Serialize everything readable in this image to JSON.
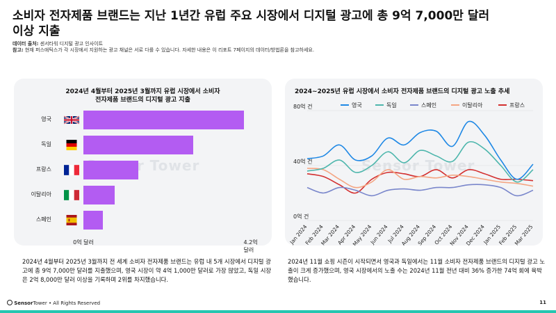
{
  "header": {
    "title": "소비자 전자제품 브랜드는 지난 1년간 유럽 주요 시장에서 디지털 광고에 총 9억 7,000만 달러 이상 지출",
    "source_label": "데이터 출처:",
    "source_value": "센서타워 디지털 광고 인사이트",
    "note_label": "참고:",
    "note_value": "현재 퍼스애틱스가 각 시장에서 지원하는 광고 채널은 서로 다를 수 있습니다. 자세한 내용은 이 리포트 7페이지의 데이터/방법론을 참고하세요."
  },
  "watermark": "Sensor Tower",
  "colors": {
    "bar": "#b35cf2",
    "uk": "#1e88e5",
    "germany": "#4db6ac",
    "spain": "#7986cb",
    "italy": "#f4a582",
    "france": "#d32f2f"
  },
  "chart_data": [
    {
      "type": "bar",
      "orientation": "horizontal",
      "title": "2024년 4월부터 2025년 3월까지 유럽 시장에서 소비자 전자제품 브랜드의 디지털 광고 지출",
      "categories": [
        "영국",
        "독일",
        "프랑스",
        "이탈리아",
        "스페인"
      ],
      "flags": [
        "uk-flag-icon",
        "germany-flag-icon",
        "france-flag-icon",
        "italy-flag-icon",
        "spain-flag-icon"
      ],
      "values": [
        4.1,
        2.8,
        1.4,
        0.8,
        0.5
      ],
      "xlim": [
        0,
        4.2
      ],
      "axis_labels": [
        "0억 달러",
        "4.2억 달러"
      ]
    },
    {
      "type": "line",
      "title": "2024~2025년 유럽 시장에서 소비자 전자제품 브랜드의 디지털 광고 노출 추세",
      "x": [
        "Jan 2024",
        "Feb 2024",
        "Mar 2024",
        "Apr 2024",
        "May 2024",
        "Jun 2024",
        "Jul 2024",
        "Aug 2024",
        "Sep 2024",
        "Oct 2024",
        "Nov 2024",
        "Dec 2024",
        "Jan 2025",
        "Feb 2025",
        "Mar 2025"
      ],
      "ylim": [
        0,
        80
      ],
      "y_ticks": [
        0,
        40,
        80
      ],
      "y_tick_labels": [
        "0억 건",
        "40억 건",
        "80억 건"
      ],
      "legend_position": "top",
      "series": [
        {
          "name": "영국",
          "values": [
            45,
            47,
            55,
            44,
            47,
            60,
            55,
            64,
            65,
            54,
            72,
            62,
            44,
            30,
            41
          ]
        },
        {
          "name": "독일",
          "values": [
            36,
            38,
            44,
            35,
            40,
            50,
            42,
            51,
            47,
            43,
            57,
            52,
            40,
            28,
            37
          ]
        },
        {
          "name": "스페인",
          "values": [
            24,
            20,
            24,
            22,
            18,
            22,
            23,
            22,
            24,
            24,
            26,
            26,
            24,
            18,
            22
          ]
        },
        {
          "name": "이탈리아",
          "values": [
            38,
            37,
            30,
            24,
            28,
            37,
            30,
            32,
            31,
            33,
            32,
            30,
            28,
            27,
            25
          ]
        },
        {
          "name": "프랑스",
          "values": [
            34,
            32,
            26,
            20,
            30,
            35,
            34,
            32,
            37,
            31,
            37,
            34,
            30,
            30,
            29
          ]
        }
      ]
    }
  ],
  "captions": {
    "left": "2024년 4월부터 2025년 3월까지 전 세계 소비자 전자제품 브랜드는 유럽 내 5개 시장에서 디지털 광고에 총 9억 7,000만 달러를 지출했으며, 영국 시장이 약 4억 1,000만 달러로 가장 많았고, 독일 시장은 2억 8,000만 달러 이상을 기록하며 2위를 차지했습니다.",
    "right": "2024년 11월 쇼핑 시즌이 시작되면서 영국과 독일에서는 11월 소비자 전자제품 브랜드의 디지털 광고 노출이 크게 증가했으며, 영국 시장에서의 노출 수는 2024년 11월 전년 대비 36% 증가한 74억 회에 육박했습니다."
  },
  "footer": {
    "brand_bold": "Sensor",
    "brand_light": "Tower",
    "rights": " • All Rights Reserved",
    "page": "11"
  }
}
